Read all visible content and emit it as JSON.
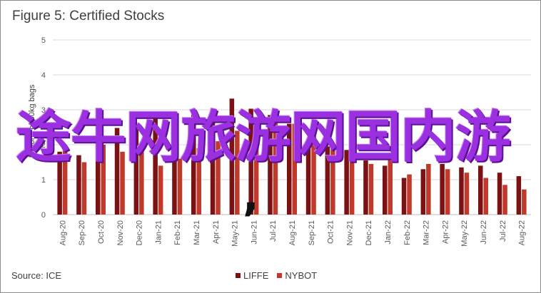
{
  "chart_data": {
    "type": "bar",
    "title": "Figure 5: Certified Stocks",
    "ylabel": "Millions of 60kg bags",
    "xlabel": "",
    "ylim": [
      0,
      5
    ],
    "yticks": [
      0,
      1,
      2,
      3,
      4,
      5
    ],
    "grid": true,
    "legend_position": "bottom",
    "categories": [
      "Aug-20",
      "Sep-20",
      "Oct-20",
      "Nov-20",
      "Dec-20",
      "Jan-21",
      "Feb-21",
      "Mar-21",
      "Apr-21",
      "May-21",
      "Jun-21",
      "Jul-21",
      "Aug-21",
      "Sep-21",
      "Oct-21",
      "Nov-21",
      "Dec-21",
      "Jan-22",
      "Feb-22",
      "Mar-22",
      "Apr-22",
      "May-22",
      "Jun-22",
      "Jul-22",
      "Aug-22"
    ],
    "series": [
      {
        "name": "LIFFE",
        "color": "#7b1113",
        "values": [
          1.8,
          1.7,
          2.05,
          2.48,
          2.62,
          2.78,
          2.85,
          2.98,
          3.03,
          3.32,
          3.03,
          2.85,
          2.6,
          2.15,
          1.95,
          1.85,
          1.55,
          1.4,
          1.05,
          1.3,
          1.45,
          1.35,
          1.4,
          1.2,
          1.1
        ]
      },
      {
        "name": "NYBOT",
        "color": "#c0392b",
        "values": [
          1.9,
          1.5,
          2.0,
          1.8,
          1.9,
          1.4,
          1.6,
          1.9,
          2.1,
          2.4,
          2.65,
          2.65,
          2.6,
          2.53,
          2.0,
          1.6,
          1.45,
          1.6,
          1.15,
          1.45,
          1.3,
          1.2,
          1.05,
          0.85,
          0.72
        ]
      }
    ]
  },
  "source": "Source: ICE",
  "overlay_text": "途牛网旅游网国内游",
  "overlay_comma": ","
}
